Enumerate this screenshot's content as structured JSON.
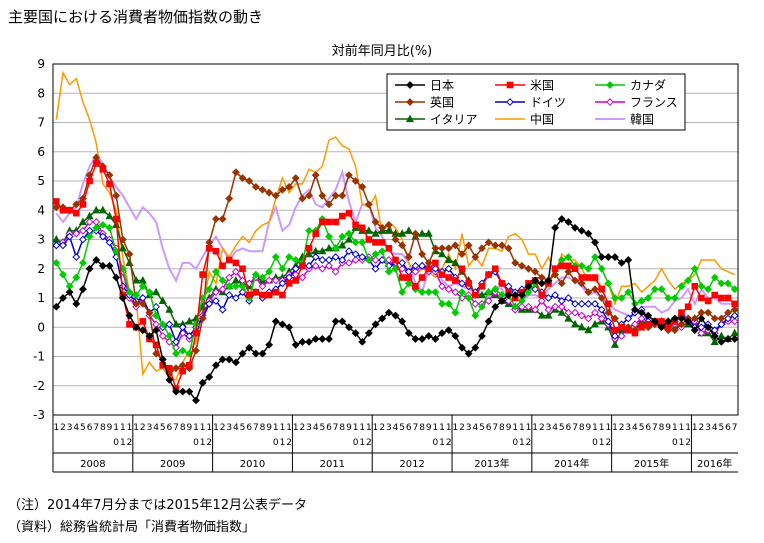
{
  "title": "主要国における消費者物価指数の動き",
  "notes": [
    "（注）2014年7月分までは2015年12月公表データ",
    "（資料）総務省統計局「消費者物価指数」"
  ],
  "chart_data": {
    "type": "line",
    "title": "主要国における消費者物価指数の動き",
    "subtitle": "対前年同月比(%)",
    "ylim": [
      -3,
      9
    ],
    "yticks": [
      -3,
      -2,
      -1,
      0,
      1,
      2,
      3,
      4,
      5,
      6,
      7,
      8,
      9
    ],
    "ylabel": "対前年同月比(%)",
    "grid": true,
    "legend_position": "top-right",
    "months": [
      "1",
      "2",
      "3",
      "4",
      "5",
      "6",
      "7",
      "8",
      "9",
      "10",
      "11",
      "12"
    ],
    "years": [
      {
        "label": "2008",
        "months": 12
      },
      {
        "label": "2009",
        "months": 12
      },
      {
        "label": "2010",
        "months": 12
      },
      {
        "label": "2011",
        "months": 12
      },
      {
        "label": "2012",
        "months": 12
      },
      {
        "label": "2013年",
        "months": 12
      },
      {
        "label": "2014年",
        "months": 12
      },
      {
        "label": "2015年",
        "months": 12
      },
      {
        "label": "2016年",
        "months": 7
      }
    ],
    "series": [
      {
        "name": "日本",
        "color": "#000000",
        "marker": "diamond",
        "fill": "#000000",
        "values": [
          0.7,
          1.0,
          1.2,
          0.8,
          1.3,
          2.0,
          2.3,
          2.1,
          2.1,
          1.7,
          1.0,
          0.4,
          0.0,
          -0.1,
          -0.3,
          -0.1,
          -1.1,
          -1.8,
          -2.2,
          -2.2,
          -2.2,
          -2.5,
          -1.9,
          -1.7,
          -1.3,
          -1.1,
          -1.1,
          -1.2,
          -0.9,
          -0.7,
          -0.9,
          -0.9,
          -0.6,
          0.2,
          0.1,
          0.0,
          -0.6,
          -0.5,
          -0.5,
          -0.4,
          -0.4,
          -0.4,
          0.2,
          0.2,
          0.0,
          -0.2,
          -0.5,
          -0.2,
          0.1,
          0.3,
          0.5,
          0.4,
          0.2,
          -0.2,
          -0.4,
          -0.4,
          -0.3,
          -0.4,
          -0.2,
          -0.1,
          -0.3,
          -0.7,
          -0.9,
          -0.7,
          -0.3,
          0.2,
          0.7,
          0.9,
          1.1,
          1.1,
          1.1,
          1.4,
          1.6,
          1.5,
          1.6,
          3.4,
          3.7,
          3.6,
          3.4,
          3.3,
          3.2,
          2.9,
          2.4,
          2.4,
          2.4,
          2.2,
          2.3,
          0.6,
          0.5,
          0.4,
          0.2,
          0.0,
          0.2,
          0.3,
          0.3,
          0.2,
          -0.1,
          0.3,
          0.0,
          -0.3,
          -0.5,
          -0.4,
          -0.4
        ]
      },
      {
        "name": "米国",
        "color": "#ff0000",
        "marker": "square",
        "fill": "#ff0000",
        "values": [
          4.3,
          4.0,
          4.0,
          3.9,
          4.2,
          5.0,
          5.6,
          5.4,
          4.9,
          3.7,
          1.1,
          0.1,
          0.0,
          0.2,
          -0.4,
          -0.6,
          -1.3,
          -1.4,
          -2.1,
          -1.5,
          -1.3,
          -0.2,
          1.8,
          2.7,
          2.6,
          2.1,
          2.3,
          2.2,
          2.0,
          1.1,
          1.2,
          1.1,
          1.1,
          1.2,
          1.1,
          1.5,
          1.6,
          2.1,
          2.7,
          3.2,
          3.6,
          3.6,
          3.6,
          3.8,
          3.9,
          3.5,
          3.4,
          3.0,
          2.9,
          2.9,
          2.7,
          2.3,
          1.7,
          1.7,
          1.4,
          1.7,
          2.0,
          2.2,
          1.8,
          1.7,
          1.6,
          2.0,
          1.5,
          1.1,
          1.4,
          1.8,
          2.0,
          1.5,
          1.2,
          1.0,
          1.2,
          1.5,
          1.6,
          1.1,
          1.5,
          2.0,
          2.1,
          2.1,
          2.0,
          1.7,
          1.7,
          1.7,
          1.3,
          0.8,
          -0.1,
          0.0,
          -0.1,
          -0.2,
          0.0,
          0.1,
          0.2,
          0.2,
          0.0,
          0.2,
          0.5,
          0.7,
          1.4,
          1.0,
          0.9,
          1.1,
          1.0,
          1.0,
          0.8
        ]
      },
      {
        "name": "カナダ",
        "color": "#00cc00",
        "marker": "diamond",
        "fill": "#00cc00",
        "values": [
          2.2,
          1.8,
          1.4,
          1.7,
          2.2,
          3.1,
          3.4,
          3.5,
          3.4,
          2.6,
          2.0,
          1.2,
          1.1,
          1.4,
          1.2,
          0.4,
          0.1,
          -0.3,
          -0.9,
          -0.8,
          -0.9,
          0.1,
          1.0,
          1.3,
          1.9,
          1.6,
          1.4,
          1.4,
          1.4,
          1.0,
          1.8,
          1.7,
          1.9,
          2.4,
          2.0,
          2.4,
          2.3,
          2.2,
          3.3,
          3.3,
          3.7,
          3.1,
          2.7,
          3.1,
          3.2,
          2.9,
          2.9,
          2.3,
          2.5,
          2.6,
          1.9,
          2.0,
          1.2,
          1.5,
          1.3,
          1.2,
          1.2,
          1.2,
          0.8,
          0.8,
          0.5,
          1.2,
          1.0,
          0.4,
          0.7,
          1.2,
          1.3,
          1.1,
          1.1,
          0.7,
          0.9,
          1.2,
          1.5,
          1.1,
          1.5,
          2.0,
          2.3,
          2.4,
          2.1,
          2.1,
          2.0,
          2.4,
          2.0,
          1.5,
          1.0,
          1.0,
          1.2,
          0.8,
          0.9,
          1.0,
          1.3,
          1.3,
          1.0,
          1.0,
          1.4,
          1.6,
          2.0,
          1.4,
          1.3,
          1.7,
          1.5,
          1.5,
          1.3
        ]
      },
      {
        "name": "英国",
        "color": "#993300",
        "marker": "diamond",
        "fill": "#993300",
        "values": [
          4.1,
          4.1,
          4.0,
          4.2,
          4.4,
          5.2,
          5.8,
          5.5,
          5.2,
          4.5,
          3.0,
          2.5,
          0.8,
          0.8,
          0.5,
          -0.9,
          -1.1,
          -1.6,
          -1.4,
          -1.3,
          -1.4,
          -0.8,
          0.3,
          2.9,
          3.7,
          3.7,
          4.4,
          5.3,
          5.1,
          5.0,
          4.8,
          4.7,
          4.6,
          4.5,
          4.7,
          4.8,
          5.1,
          4.4,
          4.5,
          5.2,
          4.5,
          4.2,
          4.5,
          4.5,
          5.2,
          5.0,
          4.8,
          4.2,
          3.6,
          3.4,
          3.5,
          3.0,
          2.8,
          2.4,
          3.2,
          2.5,
          2.2,
          2.7,
          2.7,
          2.7,
          2.8,
          2.5,
          2.8,
          2.4,
          2.7,
          2.9,
          2.8,
          2.8,
          2.7,
          2.2,
          2.1,
          2.0,
          1.9,
          1.7,
          1.6,
          1.8,
          1.5,
          1.9,
          1.6,
          1.5,
          1.2,
          1.3,
          1.0,
          0.5,
          0.3,
          0.0,
          0.0,
          -0.1,
          0.1,
          0.0,
          0.1,
          0.0,
          -0.1,
          -0.1,
          0.1,
          0.3,
          0.3,
          0.5,
          0.5,
          0.3,
          0.3,
          0.5,
          0.6
        ]
      },
      {
        "name": "ドイツ",
        "color": "#0000cc",
        "marker": "diamond",
        "fill": "#ffffff",
        "values": [
          2.8,
          2.8,
          3.1,
          2.4,
          3.0,
          3.3,
          3.3,
          3.1,
          2.9,
          2.4,
          1.4,
          1.1,
          0.9,
          1.0,
          0.5,
          0.7,
          0.0,
          0.1,
          -0.5,
          0.0,
          -0.3,
          0.0,
          0.3,
          0.8,
          0.9,
          0.6,
          1.1,
          1.0,
          1.2,
          0.9,
          1.2,
          1.0,
          1.2,
          1.3,
          1.5,
          1.7,
          2.0,
          2.1,
          2.1,
          2.4,
          2.3,
          2.3,
          2.4,
          2.3,
          2.6,
          2.5,
          2.4,
          2.3,
          2.0,
          2.3,
          2.1,
          2.2,
          2.2,
          1.9,
          2.1,
          2.1,
          2.0,
          2.0,
          1.9,
          2.0,
          1.7,
          1.5,
          1.4,
          1.2,
          1.5,
          1.8,
          1.9,
          1.5,
          1.4,
          1.2,
          1.3,
          1.4,
          1.3,
          1.2,
          1.0,
          1.1,
          0.9,
          1.0,
          0.8,
          0.8,
          0.8,
          0.8,
          0.6,
          0.2,
          -0.3,
          0.1,
          0.3,
          0.5,
          0.6,
          0.2,
          0.2,
          0.2,
          0.0,
          0.2,
          0.4,
          0.3,
          0.0,
          0.0,
          0.1,
          -0.1,
          0.1,
          0.3,
          0.4
        ]
      },
      {
        "name": "フランス",
        "color": "#cc00cc",
        "marker": "diamond",
        "fill": "#ffffff",
        "values": [
          2.8,
          2.9,
          3.2,
          3.2,
          3.3,
          3.6,
          3.6,
          3.2,
          3.0,
          2.7,
          1.9,
          1.0,
          0.7,
          1.0,
          0.4,
          0.1,
          -0.3,
          -0.5,
          -0.7,
          -0.2,
          -0.4,
          -0.2,
          0.4,
          0.9,
          1.2,
          1.3,
          1.7,
          1.9,
          1.6,
          1.5,
          1.7,
          1.4,
          1.6,
          1.6,
          1.6,
          1.8,
          1.8,
          1.7,
          2.0,
          2.1,
          2.0,
          2.1,
          1.9,
          2.2,
          2.2,
          2.3,
          2.3,
          2.4,
          2.3,
          2.3,
          2.3,
          2.0,
          2.0,
          1.9,
          1.9,
          2.1,
          1.9,
          1.9,
          1.4,
          1.3,
          1.2,
          1.0,
          1.1,
          0.8,
          0.8,
          0.9,
          1.2,
          0.9,
          0.9,
          0.6,
          0.7,
          0.7,
          0.6,
          0.9,
          0.6,
          0.7,
          0.7,
          0.5,
          0.5,
          0.4,
          0.3,
          0.5,
          0.3,
          0.1,
          -0.4,
          -0.3,
          0.0,
          0.1,
          0.3,
          0.2,
          0.2,
          0.1,
          0.0,
          0.1,
          0.0,
          0.2,
          0.2,
          -0.2,
          -0.1,
          -0.2,
          0.1,
          0.2,
          0.2
        ]
      },
      {
        "name": "イタリア",
        "color": "#006600",
        "marker": "triangle",
        "fill": "#006600",
        "values": [
          3.0,
          2.9,
          3.3,
          3.3,
          3.6,
          3.8,
          4.0,
          4.0,
          3.8,
          3.5,
          2.7,
          2.2,
          1.6,
          1.6,
          1.1,
          1.2,
          0.9,
          0.6,
          0.1,
          0.1,
          0.2,
          0.3,
          0.7,
          1.0,
          1.3,
          1.2,
          1.4,
          1.6,
          1.5,
          1.4,
          1.7,
          1.6,
          1.6,
          1.7,
          1.7,
          1.9,
          2.1,
          2.4,
          2.5,
          2.6,
          2.6,
          2.7,
          2.7,
          2.8,
          3.0,
          3.4,
          3.3,
          3.3,
          3.2,
          3.3,
          3.3,
          3.2,
          3.2,
          3.3,
          3.1,
          3.2,
          3.2,
          2.6,
          2.5,
          2.3,
          2.2,
          1.9,
          1.6,
          1.1,
          1.1,
          1.2,
          1.1,
          0.9,
          0.8,
          0.7,
          0.6,
          0.6,
          0.6,
          0.4,
          0.4,
          0.6,
          0.5,
          0.3,
          0.1,
          0.0,
          -0.1,
          0.1,
          0.2,
          0.0,
          -0.6,
          -0.1,
          -0.1,
          -0.1,
          0.2,
          0.1,
          0.2,
          0.2,
          0.2,
          0.0,
          0.1,
          0.1,
          0.3,
          -0.2,
          -0.2,
          -0.5,
          -0.3,
          -0.4,
          -0.2
        ]
      },
      {
        "name": "中国",
        "color": "#ff9900",
        "marker": "none",
        "fill": "#ff9900",
        "values": [
          7.1,
          8.7,
          8.3,
          8.5,
          7.7,
          7.1,
          6.3,
          4.9,
          4.6,
          4.0,
          2.4,
          1.2,
          1.0,
          -1.6,
          -1.2,
          -1.5,
          -1.4,
          -1.7,
          -1.8,
          -1.2,
          -0.8,
          -0.5,
          0.6,
          1.9,
          1.5,
          2.7,
          2.4,
          2.8,
          3.1,
          2.9,
          3.3,
          3.5,
          3.6,
          4.4,
          5.1,
          4.6,
          4.9,
          4.9,
          5.4,
          5.3,
          5.5,
          6.4,
          6.5,
          6.2,
          6.1,
          5.5,
          4.2,
          4.1,
          4.5,
          3.2,
          3.6,
          3.4,
          3.0,
          2.2,
          1.8,
          2.0,
          1.9,
          1.7,
          2.0,
          2.5,
          2.0,
          3.2,
          2.1,
          2.4,
          2.1,
          2.7,
          2.7,
          2.6,
          3.1,
          3.2,
          3.0,
          2.5,
          2.5,
          2.0,
          2.4,
          1.8,
          2.5,
          2.3,
          2.3,
          2.0,
          1.6,
          1.6,
          1.4,
          1.5,
          0.8,
          1.4,
          1.4,
          1.5,
          1.2,
          1.4,
          1.6,
          2.0,
          1.6,
          1.3,
          1.5,
          1.6,
          1.8,
          2.3,
          2.3,
          2.3,
          2.0,
          1.9,
          1.8
        ]
      },
      {
        "name": "韓国",
        "color": "#cc99ff",
        "marker": "none",
        "fill": "#cc99ff",
        "values": [
          3.9,
          3.6,
          3.9,
          4.1,
          4.9,
          5.5,
          5.9,
          5.6,
          5.1,
          4.8,
          4.5,
          4.1,
          3.7,
          4.1,
          3.9,
          3.6,
          2.7,
          2.0,
          1.6,
          2.2,
          2.2,
          2.0,
          2.4,
          2.8,
          3.1,
          2.7,
          2.3,
          2.6,
          2.7,
          2.6,
          2.6,
          2.6,
          3.6,
          4.1,
          3.3,
          3.5,
          4.1,
          4.5,
          4.7,
          4.2,
          4.1,
          4.4,
          4.7,
          5.3,
          4.3,
          3.6,
          4.2,
          4.2,
          3.4,
          3.1,
          2.6,
          2.5,
          2.5,
          2.2,
          1.5,
          1.2,
          2.0,
          2.1,
          1.6,
          1.4,
          1.5,
          1.4,
          1.3,
          1.2,
          1.1,
          1.0,
          1.4,
          1.3,
          0.8,
          0.7,
          0.9,
          1.1,
          1.1,
          1.0,
          1.3,
          1.5,
          1.7,
          1.7,
          1.6,
          1.4,
          1.1,
          1.2,
          1.0,
          0.8,
          0.6,
          0.5,
          0.4,
          0.4,
          0.7,
          0.7,
          0.7,
          0.5,
          0.6,
          0.9,
          1.0,
          1.3,
          0.8,
          1.3,
          1.0,
          1.0,
          0.8,
          0.8,
          0.8
        ]
      }
    ]
  }
}
